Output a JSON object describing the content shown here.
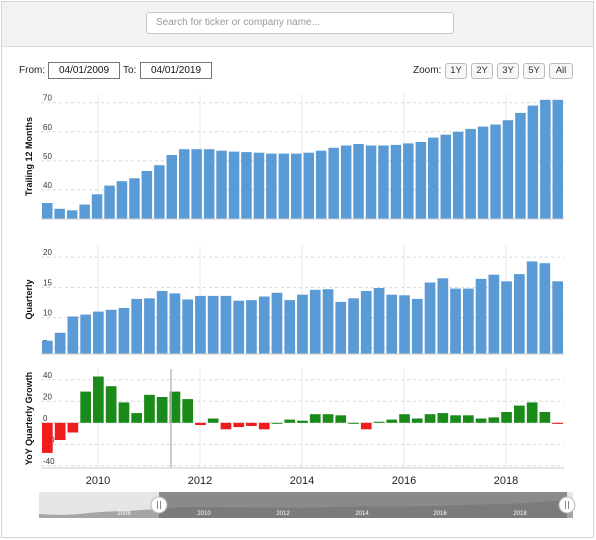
{
  "search": {
    "placeholder": "Search for ticker or company name..."
  },
  "range": {
    "from_label": "From:",
    "from_value": "04/01/2009",
    "to_label": "To:",
    "to_value": "04/01/2019"
  },
  "zoom": {
    "label": "Zoom:",
    "buttons": [
      "1Y",
      "2Y",
      "3Y",
      "5Y",
      "All"
    ]
  },
  "colors": {
    "bar": "#5b9bd5",
    "pos": "#1a8a1a",
    "neg": "#ee1c1c"
  },
  "chart_data": [
    {
      "type": "bar",
      "ylabel": "Trailing 12 Months",
      "ylim": [
        30,
        73
      ],
      "yticks": [
        30,
        40,
        50,
        60,
        70
      ],
      "series": [
        {
          "values": [
            35.5,
            33.5,
            33,
            35,
            38.5,
            41.5,
            43,
            44,
            46.5,
            48.5,
            52,
            54,
            54,
            54,
            53.5,
            53.2,
            53,
            52.8,
            52.5,
            52.5,
            52.5,
            52.8,
            53.5,
            54.5,
            55.3,
            55.8,
            55.3,
            55.3,
            55.5,
            56,
            56.5,
            58,
            59,
            60,
            61,
            61.8,
            62.5,
            64,
            66.5,
            69,
            71,
            71
          ]
        }
      ]
    },
    {
      "type": "bar",
      "ylabel": "Quarterly",
      "ylim": [
        4,
        22
      ],
      "yticks": [
        5,
        10,
        15,
        20
      ],
      "series": [
        {
          "values": [
            6.2,
            7.5,
            10.2,
            10.5,
            11,
            11.3,
            11.6,
            13.1,
            13.2,
            14.4,
            14,
            13,
            13.6,
            13.6,
            13.6,
            12.8,
            12.9,
            13.5,
            14.1,
            12.9,
            13.8,
            14.6,
            14.7,
            12.6,
            13.2,
            14.4,
            14.9,
            13.8,
            13.7,
            13.1,
            15.8,
            16.5,
            14.8,
            14.8,
            16.4,
            17.1,
            16,
            17.2,
            19.3,
            19,
            16
          ]
        }
      ]
    },
    {
      "type": "bar",
      "ylabel": "YoY Quarterly Growth",
      "ylim": [
        -42,
        50
      ],
      "yticks": [
        -40,
        -20,
        0,
        20,
        40
      ],
      "series": [
        {
          "values": [
            -28,
            -16,
            -9,
            29,
            43,
            34,
            19,
            9,
            26,
            24,
            29,
            22,
            -2,
            4,
            -6,
            -4,
            -3,
            -6,
            0,
            3,
            2,
            8,
            8,
            7,
            0,
            -6,
            1,
            3,
            8,
            4,
            8,
            9,
            7,
            7,
            4,
            5,
            10,
            16,
            19,
            10,
            -1
          ]
        }
      ]
    }
  ],
  "xaxis": {
    "ticks": [
      "2010",
      "2012",
      "2014",
      "2016",
      "2018"
    ]
  },
  "navigator": {
    "ticks": [
      "2008",
      "2010",
      "2012",
      "2014",
      "2016",
      "2018"
    ]
  }
}
